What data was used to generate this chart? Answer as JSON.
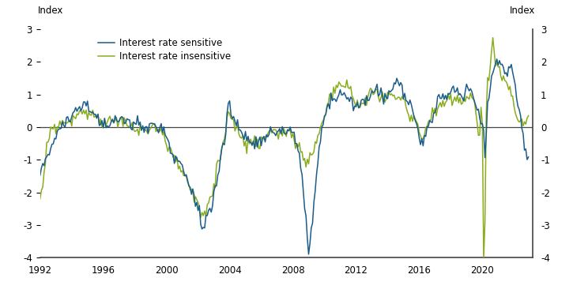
{
  "ylabel_left": "Index",
  "ylabel_right": "Index",
  "xlim": [
    1992.0,
    2023.2
  ],
  "ylim": [
    -4,
    3
  ],
  "yticks": [
    -4,
    -3,
    -2,
    -1,
    0,
    1,
    2,
    3
  ],
  "xticks": [
    1992,
    1996,
    2000,
    2004,
    2008,
    2012,
    2016,
    2020
  ],
  "color_sensitive": "#1a5c8a",
  "color_insensitive": "#8aad1e",
  "legend_labels": [
    "Interest rate sensitive",
    "Interest rate insensitive"
  ],
  "line_width": 1.1,
  "background_color": "#ffffff",
  "zero_line_color": "#444444",
  "spine_color": "#444444"
}
